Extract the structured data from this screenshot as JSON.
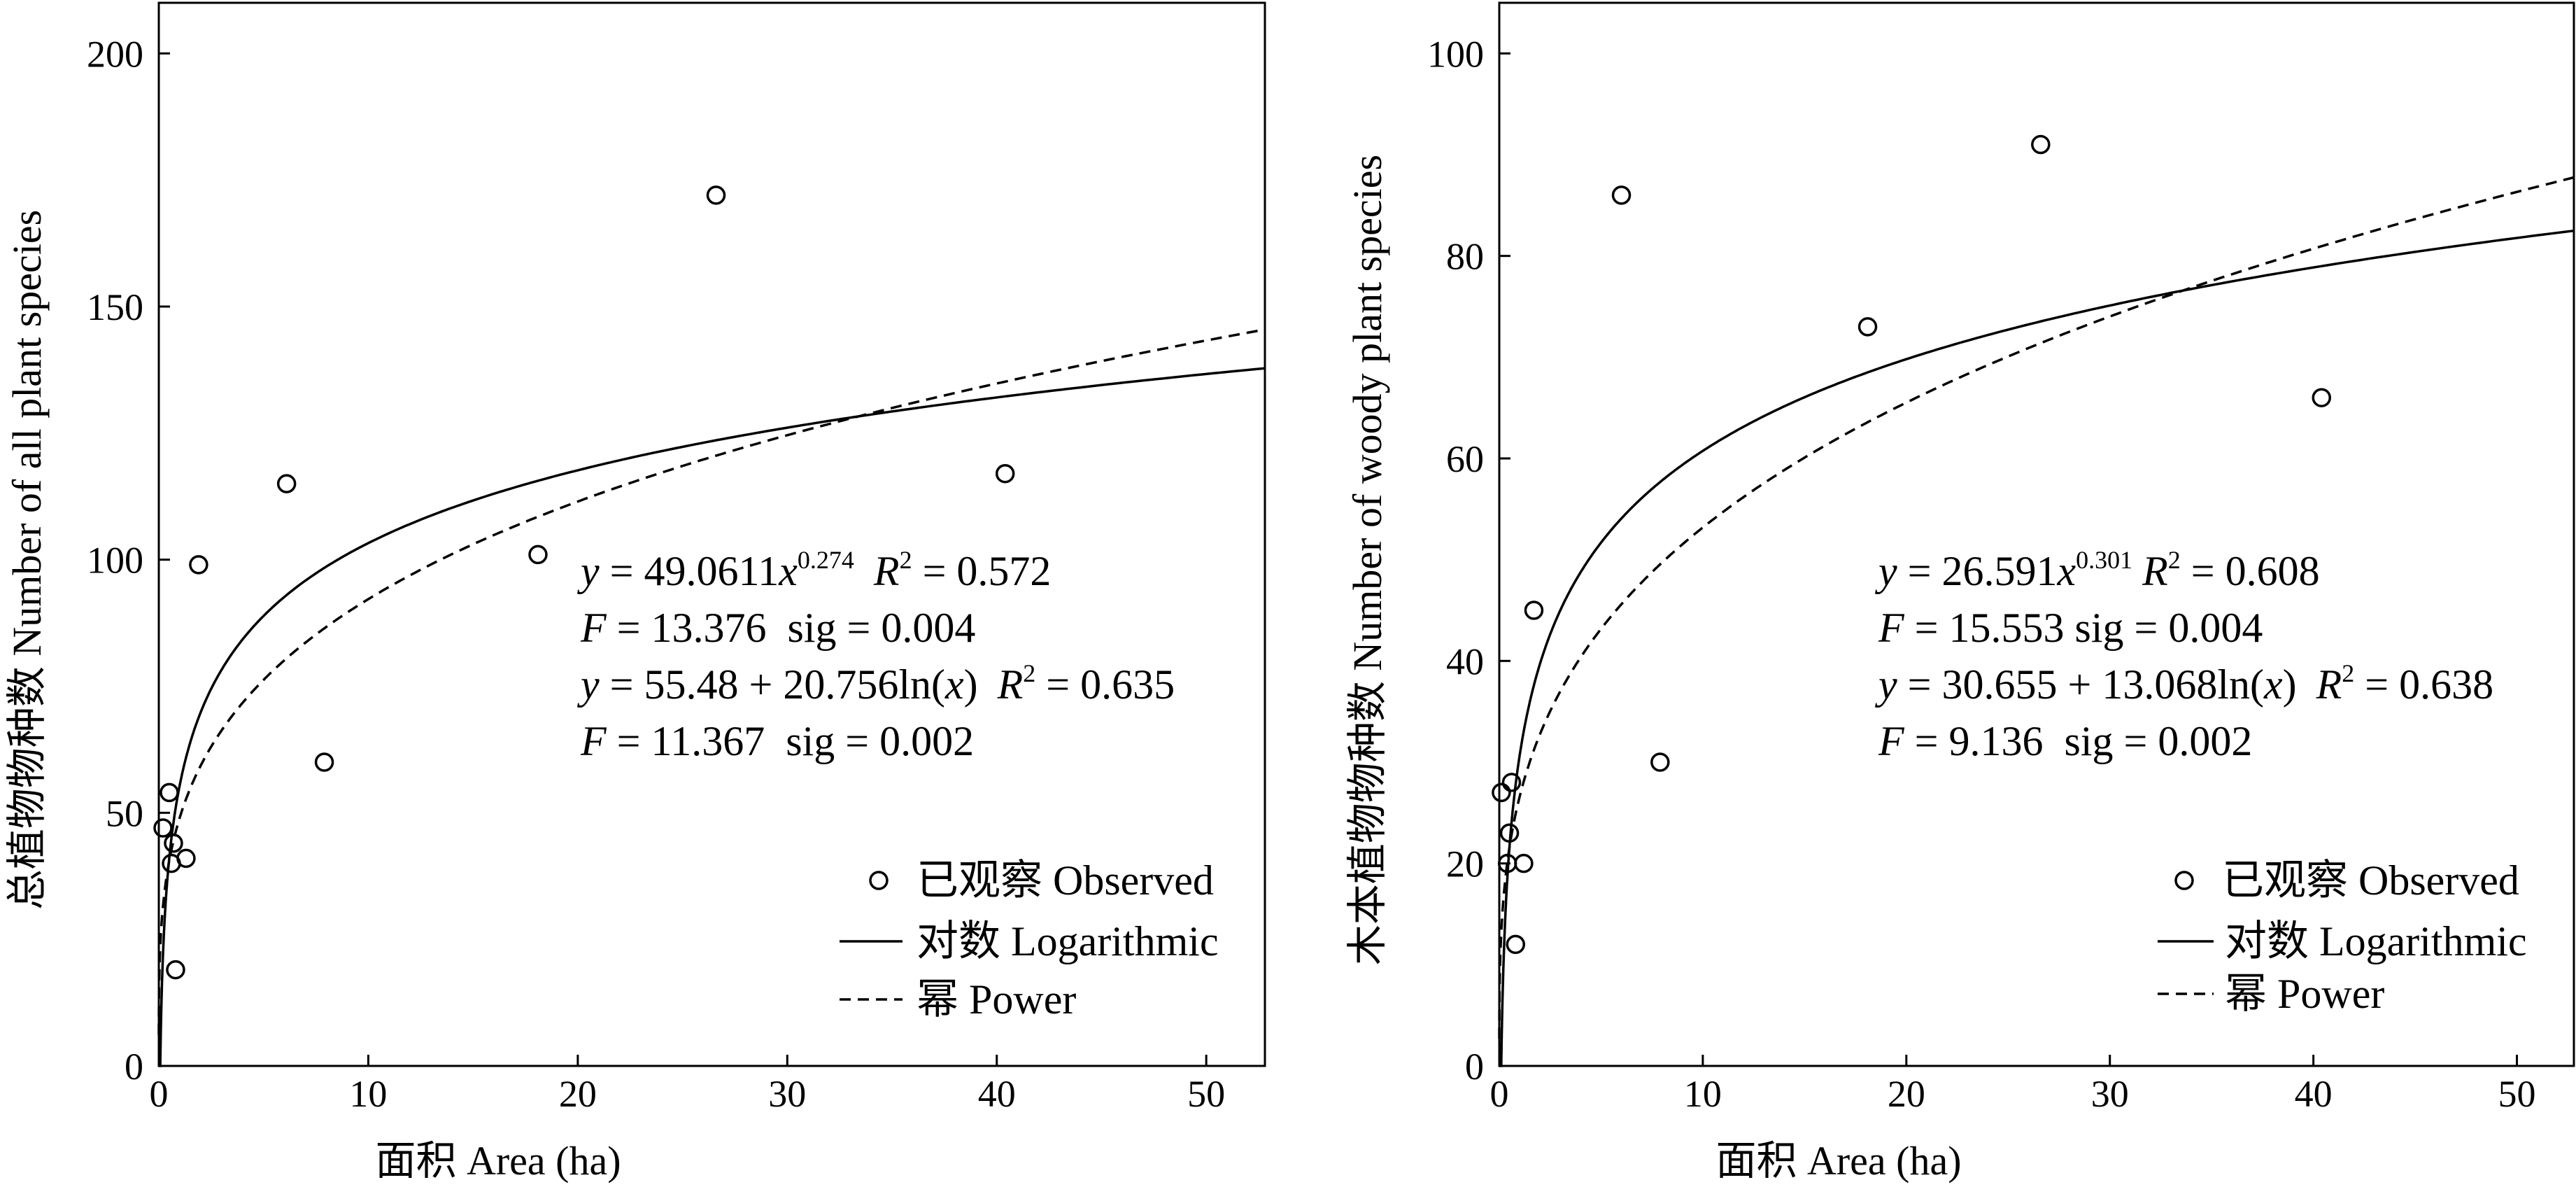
{
  "chart_data": [
    {
      "type": "scatter",
      "xlabel": "面积 Area (ha)",
      "ylabel": "总植物物种数 Number of all plant species",
      "xlim": [
        0,
        52.8
      ],
      "ylim": [
        0,
        210
      ],
      "x_ticks": [
        0,
        10,
        20,
        30,
        40,
        50
      ],
      "y_ticks": [
        0,
        50,
        100,
        150,
        200
      ],
      "grid": false,
      "legend_position": "bottom-right",
      "series": [
        {
          "name": "已观察 Observed",
          "kind": "points",
          "x": [
            0.2,
            0.5,
            0.6,
            0.7,
            0.8,
            1.3,
            1.9,
            6.1,
            7.9,
            18.1,
            26.6,
            40.4
          ],
          "y": [
            47,
            54,
            40,
            44,
            19,
            41,
            99,
            115,
            60,
            101,
            172,
            117
          ]
        },
        {
          "name": "对数 Logarithmic",
          "kind": "line",
          "style": "solid",
          "equation": {
            "a": 55.48,
            "b": 20.756,
            "form": "a + b*ln(x)"
          }
        },
        {
          "name": "幂 Power",
          "kind": "line",
          "style": "dashed",
          "equation": {
            "a": 49.0611,
            "b": 0.274,
            "form": "a * x^b"
          }
        }
      ],
      "annotations": {
        "power_eq": {
          "lead": "y",
          "body": " = 49.0611",
          "x": "x",
          "exp": "0.274",
          "r2": "R",
          "r2_val": " = 0.572"
        },
        "power_stat": {
          "f": "F",
          "text": " = 13.376  sig = 0.004"
        },
        "log_eq": {
          "lead": "y",
          "body": " = 55.48 + 20.756ln(",
          "x": "x",
          "close": ")",
          "r2": "R",
          "r2_val": " = 0.635"
        },
        "log_stat": {
          "f": "F",
          "text": " = 11.367  sig = 0.002"
        }
      }
    },
    {
      "type": "scatter",
      "xlabel": "面积 Area (ha)",
      "ylabel": "木本植物物种数 Number of woody plant species",
      "xlim": [
        0,
        52.8
      ],
      "ylim": [
        0,
        105
      ],
      "x_ticks": [
        0,
        10,
        20,
        30,
        40,
        50
      ],
      "y_ticks": [
        0,
        20,
        40,
        60,
        80,
        100
      ],
      "grid": false,
      "legend_position": "bottom-right",
      "series": [
        {
          "name": "已观察 Observed",
          "kind": "points",
          "x": [
            0.1,
            0.4,
            0.5,
            0.6,
            0.8,
            1.2,
            1.7,
            6.0,
            7.9,
            18.1,
            26.6,
            40.4
          ],
          "y": [
            27,
            20,
            23,
            28,
            12,
            20,
            45,
            86,
            30,
            73,
            91,
            66
          ]
        },
        {
          "name": "对数 Logarithmic",
          "kind": "line",
          "style": "solid",
          "equation": {
            "a": 30.655,
            "b": 13.068,
            "form": "a + b*ln(x)"
          }
        },
        {
          "name": "幂 Power",
          "kind": "line",
          "style": "dashed",
          "equation": {
            "a": 26.591,
            "b": 0.301,
            "form": "a * x^b"
          }
        }
      ],
      "annotations": {
        "power_eq": {
          "lead": "y",
          "body": " = 26.591",
          "x": "x",
          "exp": "0.301",
          "r2": "R",
          "r2_val": " = 0.608"
        },
        "power_stat": {
          "f": "F",
          "text": " = 15.553 sig = 0.004"
        },
        "log_eq": {
          "lead": "y",
          "body": " = 30.655 + 13.068ln(",
          "x": "x",
          "close": ")",
          "r2": "R",
          "r2_val": " = 0.638"
        },
        "log_stat": {
          "f": "F",
          "text": " = 9.136  sig = 0.002"
        }
      }
    }
  ]
}
